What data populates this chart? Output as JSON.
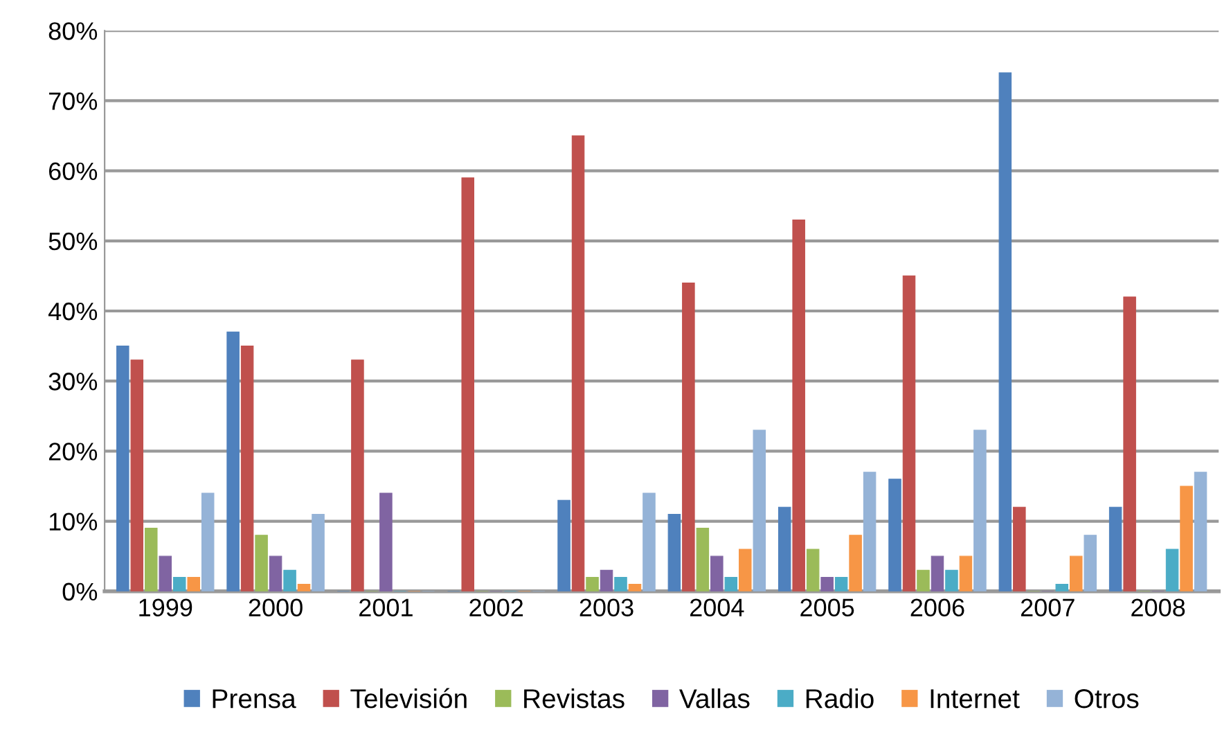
{
  "chart_data": {
    "type": "bar",
    "categories": [
      "1999",
      "2000",
      "2001",
      "2002",
      "2003",
      "2004",
      "2005",
      "2006",
      "2007",
      "2008"
    ],
    "series": [
      {
        "name": "Prensa",
        "color": "#4f81bd",
        "values": [
          35,
          37,
          0,
          0,
          13,
          11,
          12,
          16,
          74,
          12
        ]
      },
      {
        "name": "Televisión",
        "color": "#c0504d",
        "values": [
          33,
          35,
          33,
          59,
          65,
          44,
          53,
          45,
          12,
          42
        ]
      },
      {
        "name": "Revistas",
        "color": "#9bbb59",
        "values": [
          9,
          8,
          0,
          0,
          2,
          9,
          6,
          3,
          0,
          0
        ]
      },
      {
        "name": "Vallas",
        "color": "#8064a2",
        "values": [
          5,
          5,
          14,
          0,
          3,
          5,
          2,
          5,
          0,
          0
        ]
      },
      {
        "name": "Radio",
        "color": "#4bacc6",
        "values": [
          2,
          3,
          0,
          0,
          2,
          2,
          2,
          3,
          1,
          6
        ]
      },
      {
        "name": "Internet",
        "color": "#f79646",
        "values": [
          2,
          1,
          0,
          0,
          1,
          6,
          8,
          5,
          5,
          15
        ]
      },
      {
        "name": "Otros",
        "color": "#95b3d7",
        "values": [
          14,
          11,
          0,
          0,
          14,
          23,
          17,
          23,
          8,
          17
        ]
      }
    ],
    "ylim": [
      0,
      80
    ],
    "yticks": [
      {
        "value": 0,
        "label": "0%"
      },
      {
        "value": 10,
        "label": "10%"
      },
      {
        "value": 20,
        "label": "20%"
      },
      {
        "value": 30,
        "label": "30%"
      },
      {
        "value": 40,
        "label": "40%"
      },
      {
        "value": 50,
        "label": "50%"
      },
      {
        "value": 60,
        "label": "60%"
      },
      {
        "value": 70,
        "label": "70%"
      },
      {
        "value": 80,
        "label": "80%"
      }
    ],
    "grid": "y",
    "legend": "bottom"
  }
}
